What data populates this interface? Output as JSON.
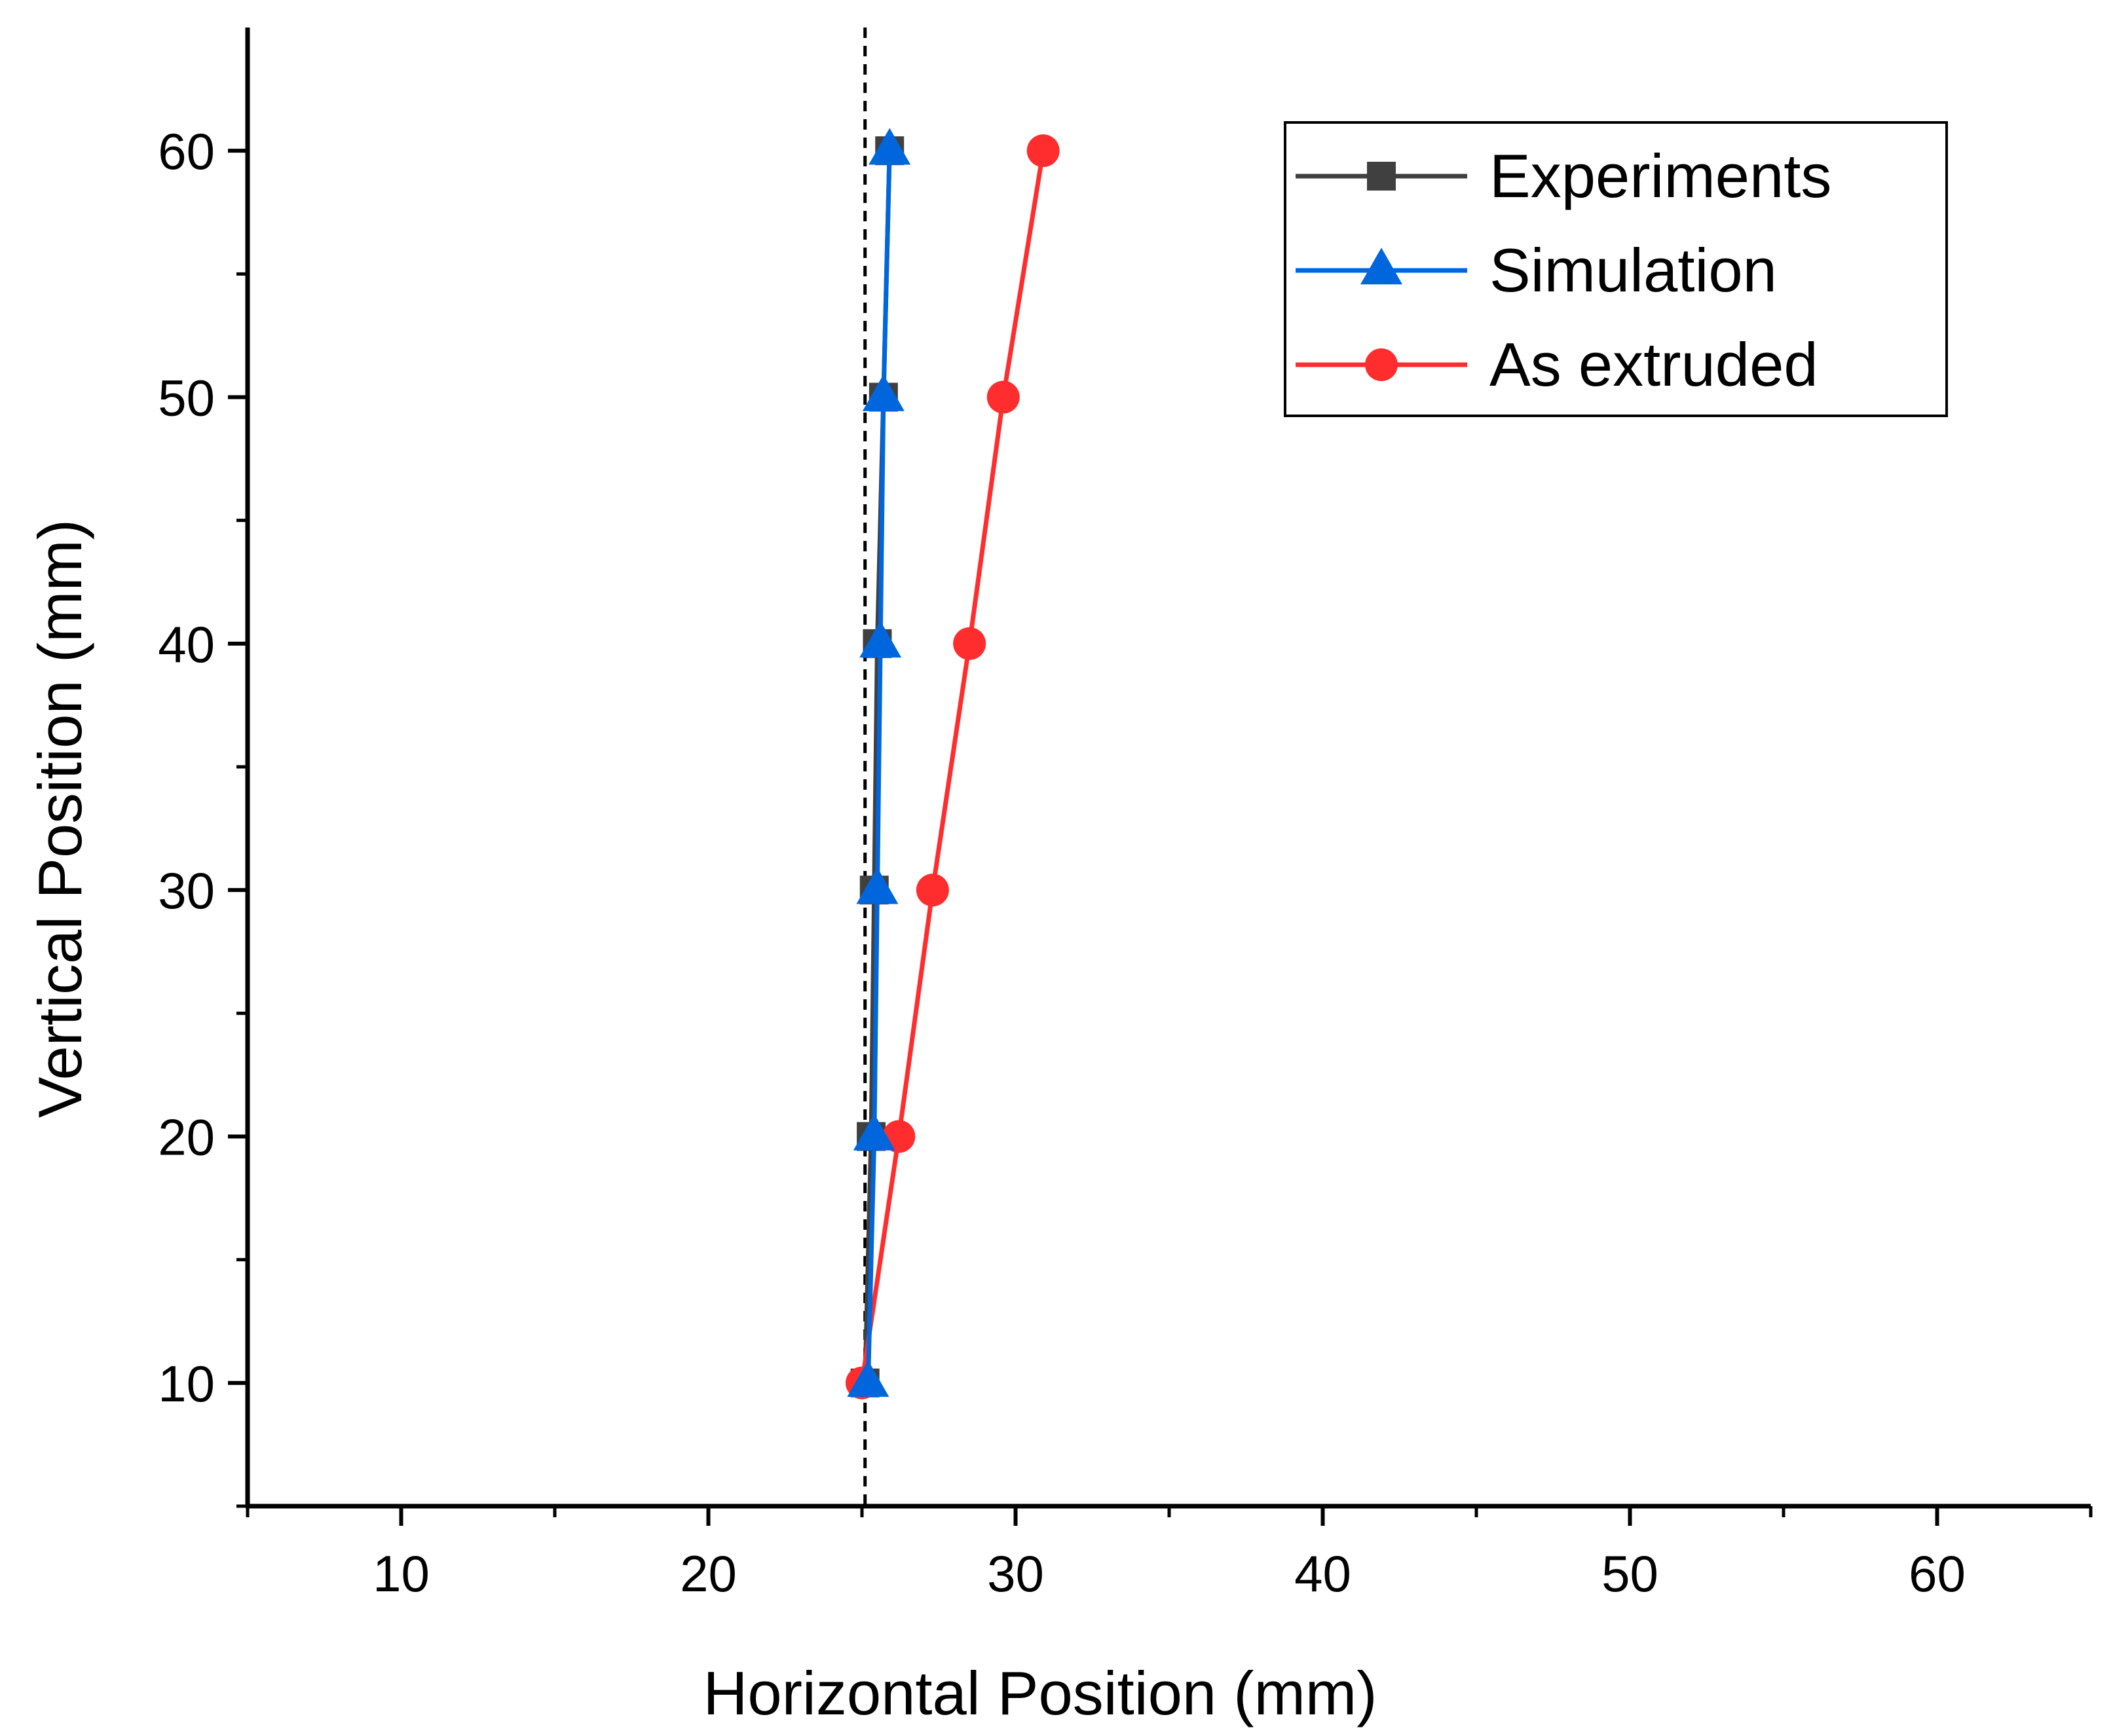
{
  "chart_data": {
    "type": "line",
    "title": "",
    "xlabel": "Horizontal Position (mm)",
    "ylabel": "Vertical Position (mm)",
    "xlim": [
      5,
      65
    ],
    "ylim": [
      5,
      65
    ],
    "xticks": [
      10,
      20,
      30,
      40,
      50,
      60
    ],
    "yticks": [
      10,
      20,
      30,
      40,
      50,
      60
    ],
    "x_tick_labels": [
      "10",
      "20",
      "30",
      "40",
      "50",
      "60"
    ],
    "y_tick_labels": [
      "10",
      "20",
      "30",
      "40",
      "50",
      "60"
    ],
    "xminor": [
      5,
      15,
      25,
      35,
      45,
      55,
      65
    ],
    "yminor": [
      5,
      15,
      25,
      35,
      45,
      55
    ],
    "grid": false,
    "legend_position": "top-right",
    "reference_line": {
      "style": "dashed",
      "x": 25.1,
      "color": "#000000"
    },
    "series": [
      {
        "name": "Experiments",
        "marker": "square",
        "color": "#404040",
        "x": [
          25.1,
          25.3,
          25.4,
          25.5,
          25.7,
          25.9
        ],
        "y": [
          10,
          20,
          30,
          40,
          50,
          60
        ]
      },
      {
        "name": "Simulation",
        "marker": "triangle",
        "color": "#0066dd",
        "x": [
          25.2,
          25.4,
          25.5,
          25.6,
          25.7,
          25.9
        ],
        "y": [
          10,
          20,
          30,
          40,
          50,
          60
        ]
      },
      {
        "name": "As extruded",
        "marker": "circle",
        "color": "#ff2d2d",
        "x": [
          25.0,
          26.2,
          27.3,
          28.5,
          29.6,
          30.9
        ],
        "y": [
          10,
          20,
          30,
          40,
          50,
          60
        ]
      }
    ]
  }
}
